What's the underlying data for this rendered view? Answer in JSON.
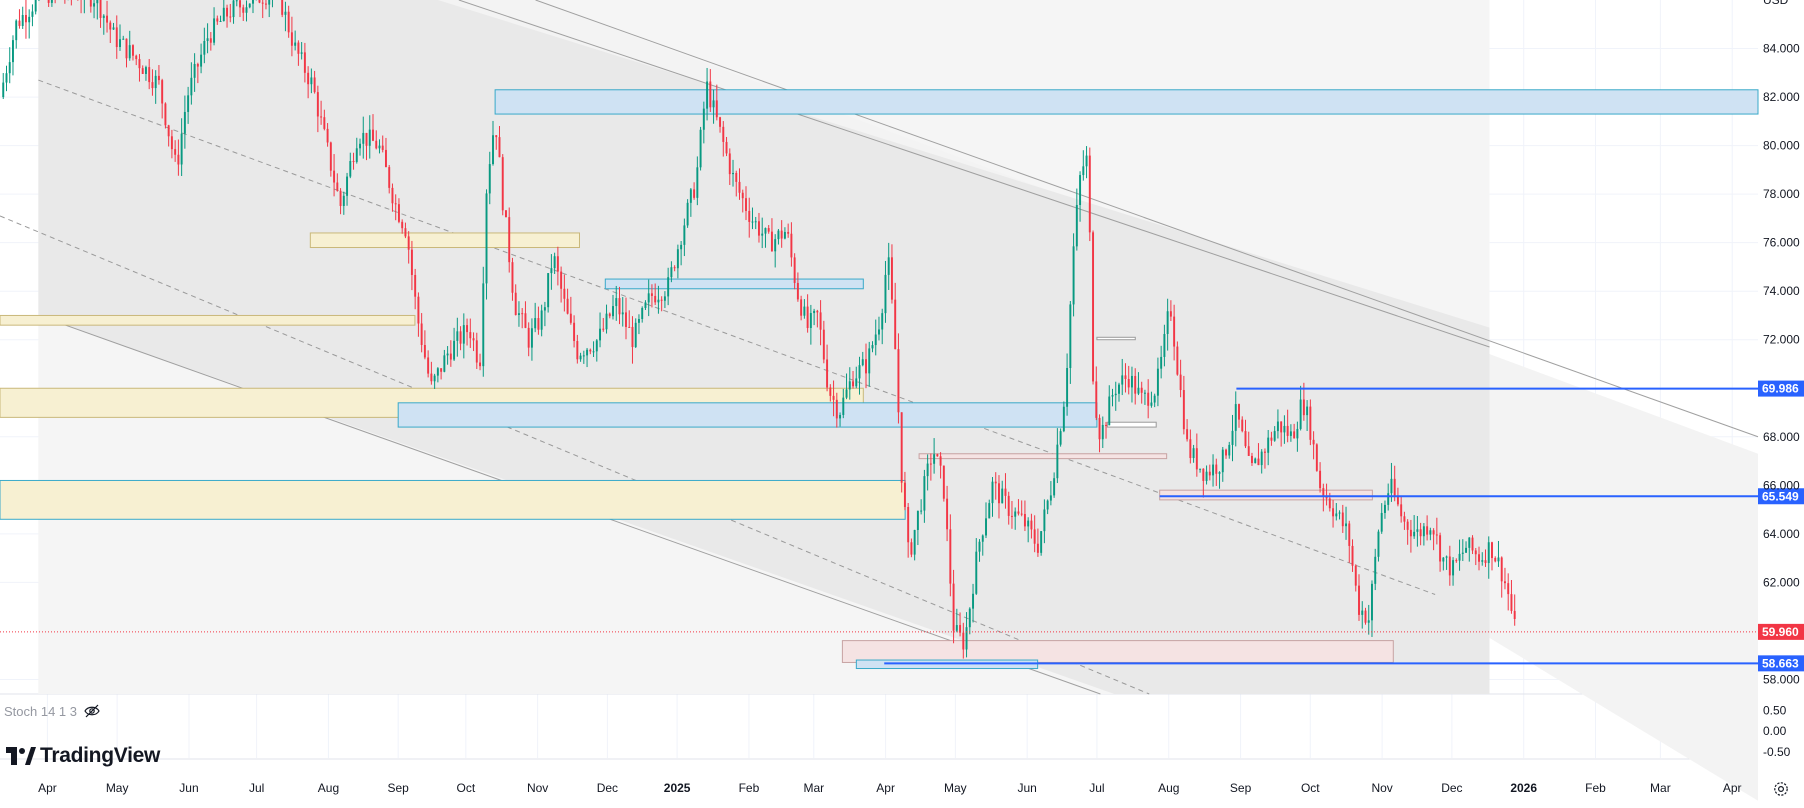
{
  "chart_data": {
    "type": "candlestick",
    "axis_unit": "USD",
    "y_ticks": [
      {
        "value": 84,
        "label": "84.000"
      },
      {
        "value": 82,
        "label": "82.000"
      },
      {
        "value": 80,
        "label": "80.000"
      },
      {
        "value": 78,
        "label": "78.000"
      },
      {
        "value": 76,
        "label": "76.000"
      },
      {
        "value": 74,
        "label": "74.000"
      },
      {
        "value": 72,
        "label": "72.000"
      },
      {
        "value": 68,
        "label": "68.000"
      },
      {
        "value": 66,
        "label": "66.000"
      },
      {
        "value": 64,
        "label": "64.000"
      },
      {
        "value": 62,
        "label": "62.000"
      },
      {
        "value": 58,
        "label": "58.000"
      }
    ],
    "ylim": [
      57.4,
      86.0
    ],
    "x_labels": [
      {
        "label": "Apr",
        "t": 0.0,
        "bold": false
      },
      {
        "label": "May",
        "t": 1.0,
        "bold": false
      },
      {
        "label": "Jun",
        "t": 2.03,
        "bold": false
      },
      {
        "label": "Jul",
        "t": 3.0,
        "bold": false
      },
      {
        "label": "Aug",
        "t": 4.03,
        "bold": false
      },
      {
        "label": "Sep",
        "t": 5.03,
        "bold": false
      },
      {
        "label": "Oct",
        "t": 6.0,
        "bold": false
      },
      {
        "label": "Nov",
        "t": 7.03,
        "bold": false
      },
      {
        "label": "Dec",
        "t": 8.03,
        "bold": false
      },
      {
        "label": "2025",
        "t": 9.03,
        "bold": true
      },
      {
        "label": "Feb",
        "t": 10.06,
        "bold": false
      },
      {
        "label": "Mar",
        "t": 10.99,
        "bold": false
      },
      {
        "label": "Apr",
        "t": 12.02,
        "bold": false
      },
      {
        "label": "May",
        "t": 13.02,
        "bold": false
      },
      {
        "label": "Jun",
        "t": 14.05,
        "bold": false
      },
      {
        "label": "Jul",
        "t": 15.05,
        "bold": false
      },
      {
        "label": "Aug",
        "t": 16.08,
        "bold": false
      },
      {
        "label": "Sep",
        "t": 17.11,
        "bold": false
      },
      {
        "label": "Oct",
        "t": 18.11,
        "bold": false
      },
      {
        "label": "Nov",
        "t": 19.14,
        "bold": false
      },
      {
        "label": "Dec",
        "t": 20.14,
        "bold": false
      },
      {
        "label": "2026",
        "t": 21.17,
        "bold": true
      },
      {
        "label": "Feb",
        "t": 22.2,
        "bold": false
      },
      {
        "label": "Mar",
        "t": 23.13,
        "bold": false
      },
      {
        "label": "Apr",
        "t": 24.16,
        "bold": false
      }
    ],
    "xlim_months": [
      -0.68,
      24.53
    ],
    "price_path": [
      [
        -0.68,
        82.0
      ],
      [
        -0.45,
        85.0
      ],
      [
        -0.1,
        86.2
      ],
      [
        0.3,
        86.4
      ],
      [
        0.7,
        86.1
      ],
      [
        0.95,
        84.5
      ],
      [
        1.3,
        83.5
      ],
      [
        1.6,
        82.5
      ],
      [
        1.85,
        79.0
      ],
      [
        2.0,
        82.0
      ],
      [
        2.3,
        84.5
      ],
      [
        2.6,
        85.5
      ],
      [
        2.9,
        86.0
      ],
      [
        3.3,
        86.4
      ],
      [
        3.55,
        84.0
      ],
      [
        3.8,
        82.5
      ],
      [
        4.0,
        80.0
      ],
      [
        4.2,
        77.5
      ],
      [
        4.45,
        80.5
      ],
      [
        4.75,
        80.0
      ],
      [
        5.0,
        77.5
      ],
      [
        5.15,
        76.5
      ],
      [
        5.3,
        73.0
      ],
      [
        5.5,
        70.0
      ],
      [
        5.75,
        71.5
      ],
      [
        6.05,
        72.5
      ],
      [
        6.2,
        71.0
      ],
      [
        6.3,
        78.5
      ],
      [
        6.42,
        81.2
      ],
      [
        6.52,
        78.0
      ],
      [
        6.7,
        73.5
      ],
      [
        6.9,
        72.0
      ],
      [
        7.1,
        73.0
      ],
      [
        7.25,
        75.5
      ],
      [
        7.45,
        73.0
      ],
      [
        7.6,
        71.5
      ],
      [
        7.9,
        72.0
      ],
      [
        8.15,
        73.5
      ],
      [
        8.4,
        72.0
      ],
      [
        8.65,
        73.8
      ],
      [
        8.9,
        74.2
      ],
      [
        9.1,
        76.5
      ],
      [
        9.3,
        78.5
      ],
      [
        9.45,
        82.5
      ],
      [
        9.6,
        81.0
      ],
      [
        9.85,
        78.5
      ],
      [
        10.1,
        77.0
      ],
      [
        10.35,
        76.0
      ],
      [
        10.6,
        76.5
      ],
      [
        10.75,
        74.0
      ],
      [
        10.9,
        72.5
      ],
      [
        11.05,
        73.0
      ],
      [
        11.2,
        70.0
      ],
      [
        11.35,
        69.0
      ],
      [
        11.55,
        70.5
      ],
      [
        11.75,
        71.0
      ],
      [
        11.95,
        73.0
      ],
      [
        12.05,
        75.5
      ],
      [
        12.15,
        72.0
      ],
      [
        12.25,
        66.5
      ],
      [
        12.35,
        63.0
      ],
      [
        12.5,
        65.0
      ],
      [
        12.7,
        67.5
      ],
      [
        12.85,
        66.0
      ],
      [
        13.0,
        60.0
      ],
      [
        13.15,
        59.5
      ],
      [
        13.35,
        63.5
      ],
      [
        13.55,
        66.0
      ],
      [
        13.8,
        65.0
      ],
      [
        14.0,
        64.5
      ],
      [
        14.2,
        63.5
      ],
      [
        14.4,
        66.0
      ],
      [
        14.6,
        70.0
      ],
      [
        14.72,
        76.0
      ],
      [
        14.82,
        79.0
      ],
      [
        14.92,
        79.5
      ],
      [
        15.0,
        70.0
      ],
      [
        15.1,
        68.0
      ],
      [
        15.3,
        70.0
      ],
      [
        15.5,
        70.5
      ],
      [
        15.7,
        69.5
      ],
      [
        15.9,
        70.0
      ],
      [
        16.0,
        71.5
      ],
      [
        16.1,
        73.5
      ],
      [
        16.2,
        71.0
      ],
      [
        16.35,
        67.5
      ],
      [
        16.6,
        66.5
      ],
      [
        16.85,
        67.0
      ],
      [
        17.05,
        69.0
      ],
      [
        17.25,
        66.5
      ],
      [
        17.45,
        67.5
      ],
      [
        17.65,
        68.5
      ],
      [
        17.85,
        68.0
      ],
      [
        18.0,
        69.5
      ],
      [
        18.1,
        68.5
      ],
      [
        18.25,
        66.0
      ],
      [
        18.45,
        65.0
      ],
      [
        18.65,
        64.0
      ],
      [
        18.8,
        61.0
      ],
      [
        18.95,
        60.5
      ],
      [
        19.1,
        64.5
      ],
      [
        19.25,
        66.0
      ],
      [
        19.45,
        64.5
      ],
      [
        19.65,
        64.0
      ],
      [
        19.85,
        64.5
      ],
      [
        20.0,
        63.0
      ],
      [
        20.15,
        62.5
      ],
      [
        20.35,
        63.5
      ],
      [
        20.55,
        63.0
      ],
      [
        20.7,
        63.5
      ],
      [
        20.85,
        62.5
      ],
      [
        20.95,
        61.5
      ],
      [
        21.05,
        59.96
      ]
    ],
    "price_levels": [
      {
        "value": 69.986,
        "label": "69.986",
        "color": "#2962ff"
      },
      {
        "value": 65.549,
        "label": "65.549",
        "color": "#2962ff"
      },
      {
        "value": 59.96,
        "label": "59.960",
        "color": "#f23645"
      },
      {
        "value": 58.663,
        "label": "58.663",
        "color": "#2962ff"
      }
    ],
    "indicator": {
      "name": "Stoch 14 1 3",
      "y_ticks": [
        {
          "value": 0.5,
          "label": "0.50"
        },
        {
          "value": 0.0,
          "label": "0.00"
        },
        {
          "value": -0.5,
          "label": "-0.50"
        }
      ],
      "ylim": [
        -0.65,
        0.85
      ]
    },
    "axis_top_partial_label": "USD"
  },
  "branding": {
    "logo_text": "TradingView"
  },
  "colors": {
    "up": "#089981",
    "down": "#f23645",
    "accent": "#2962ff",
    "grid": "#f0f3fa",
    "channel_fill": "#e6e6e6",
    "box_blue": "#cfe2f3",
    "box_yellow": "#f7f0d2",
    "box_pink": "#f5e3e3"
  }
}
